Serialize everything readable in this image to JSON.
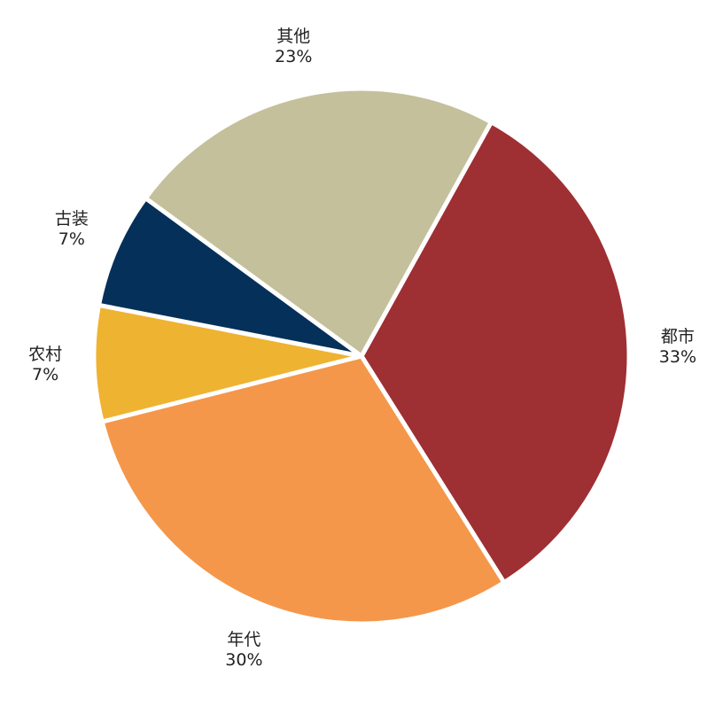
{
  "chart_data": {
    "type": "pie",
    "start_angle_deg": -61,
    "direction": "clockwise",
    "slices": [
      {
        "label": "都市",
        "value": 33,
        "value_label": "33%",
        "color": "#9e2f33"
      },
      {
        "label": "年代",
        "value": 30,
        "value_label": "30%",
        "color": "#f4974a"
      },
      {
        "label": "农村",
        "value": 7,
        "value_label": "7%",
        "color": "#efb332"
      },
      {
        "label": "古装",
        "value": 7,
        "value_label": "7%",
        "color": "#05305a"
      },
      {
        "label": "其他",
        "value": 23,
        "value_label": "23%",
        "color": "#c4c09b"
      }
    ]
  }
}
